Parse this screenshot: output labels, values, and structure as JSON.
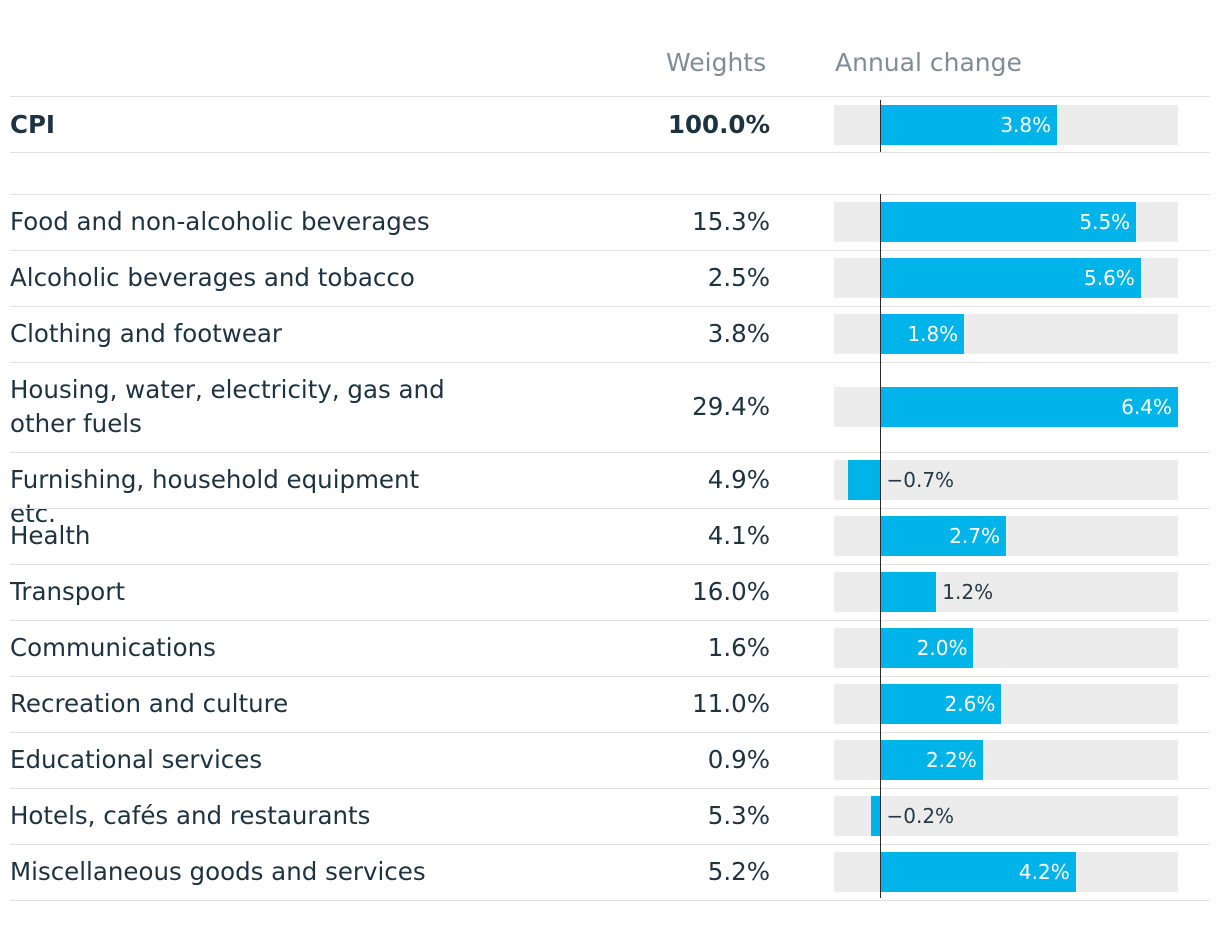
{
  "headers": {
    "weights": "Weights",
    "change": "Annual change"
  },
  "colors": {
    "bar": "#00b4ea",
    "track": "#ececec",
    "text": "#1d3340",
    "header": "#7f8d96"
  },
  "chart_data": {
    "type": "bar",
    "orientation": "horizontal",
    "xlim": [
      -1.0,
      6.4
    ],
    "columns": [
      "Weights",
      "Annual change"
    ],
    "total": {
      "category": "CPI",
      "weight": "100.0%",
      "value": 3.8,
      "label": "3.8%"
    },
    "categories": [
      "Food and non-alcoholic beverages",
      "Alcoholic beverages and tobacco",
      "Clothing and footwear",
      "Housing, water, electricity, gas and other fuels",
      "Furnishing, household equipment etc.",
      "Health",
      "Transport",
      "Communications",
      "Recreation and culture",
      "Educational services",
      "Hotels, cafés and restaurants",
      "Miscellaneous goods and services"
    ],
    "weights": [
      "15.3%",
      "2.5%",
      "3.8%",
      "29.4%",
      "4.9%",
      "4.1%",
      "16.0%",
      "1.6%",
      "11.0%",
      "0.9%",
      "5.3%",
      "5.2%"
    ],
    "values": [
      5.5,
      5.6,
      1.8,
      6.4,
      -0.7,
      2.7,
      1.2,
      2.0,
      2.6,
      2.2,
      -0.2,
      4.2
    ],
    "value_labels": [
      "5.5%",
      "5.6%",
      "1.8%",
      "6.4%",
      "−0.7%",
      "2.7%",
      "1.2%",
      "2.0%",
      "2.6%",
      "2.2%",
      "−0.2%",
      "4.2%"
    ]
  }
}
